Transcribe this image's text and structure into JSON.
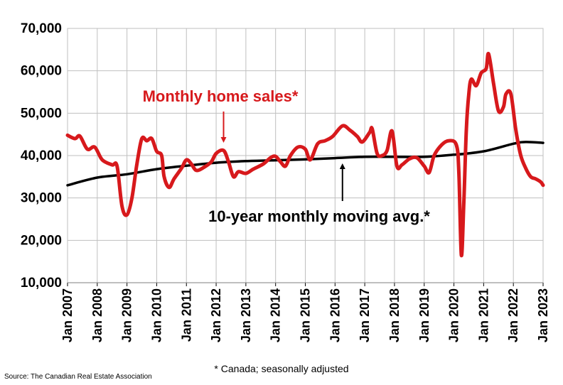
{
  "colors": {
    "sales": "#d7191c",
    "moving_avg": "#000000",
    "grid": "#bfbfbf"
  },
  "annotations": {
    "sales_label": "Monthly home sales*",
    "avg_label": "10-year monthly moving avg.*"
  },
  "footnote": "* Canada; seasonally adjusted",
  "source": "Source: The Canadian Real Estate Association",
  "chart_data": {
    "type": "line",
    "title": "",
    "xlabel": "",
    "ylabel": "",
    "ylim": [
      10000,
      70000
    ],
    "xlim": [
      "Jan 2007",
      "Jan 2023"
    ],
    "grid": true,
    "legend": "none",
    "y_ticks": [
      "10,000",
      "20,000",
      "30,000",
      "40,000",
      "50,000",
      "60,000",
      "70,000"
    ],
    "x_ticks": [
      "Jan 2007",
      "Jan 2008",
      "Jan 2009",
      "Jan 2010",
      "Jan 2011",
      "Jan 2012",
      "Jan 2013",
      "Jan 2014",
      "Jan 2015",
      "Jan 2016",
      "Jan 2017",
      "Jan 2018",
      "Jan 2019",
      "Jan 2020",
      "Jan 2021",
      "Jan 2022",
      "Jan 2023"
    ],
    "series": [
      {
        "name": "Monthly home sales*",
        "points": [
          [
            "Jan 2007",
            44800
          ],
          [
            "Apr 2007",
            44000
          ],
          [
            "Jun 2007",
            44600
          ],
          [
            "Sep 2007",
            41500
          ],
          [
            "Dec 2007",
            42000
          ],
          [
            "Mar 2008",
            39000
          ],
          [
            "Jul 2008",
            37800
          ],
          [
            "Sep 2008",
            37500
          ],
          [
            "Nov 2008",
            28000
          ],
          [
            "Jan 2009",
            26000
          ],
          [
            "Mar 2009",
            30000
          ],
          [
            "May 2009",
            38000
          ],
          [
            "Jul 2009",
            44000
          ],
          [
            "Sep 2009",
            43500
          ],
          [
            "Nov 2009",
            44000
          ],
          [
            "Jan 2010",
            41000
          ],
          [
            "Mar 2010",
            40000
          ],
          [
            "Apr 2010",
            35000
          ],
          [
            "Jun 2010",
            32500
          ],
          [
            "Aug 2010",
            34500
          ],
          [
            "Nov 2010",
            37000
          ],
          [
            "Jan 2011",
            39000
          ],
          [
            "Mar 2011",
            38000
          ],
          [
            "May 2011",
            36500
          ],
          [
            "Aug 2011",
            37200
          ],
          [
            "Nov 2011",
            38500
          ],
          [
            "Jan 2012",
            40500
          ],
          [
            "Apr 2012",
            41200
          ],
          [
            "Jun 2012",
            38500
          ],
          [
            "Aug 2012",
            35000
          ],
          [
            "Oct 2012",
            36200
          ],
          [
            "Jan 2013",
            35800
          ],
          [
            "Apr 2013",
            36800
          ],
          [
            "Aug 2013",
            38000
          ],
          [
            "Nov 2013",
            39500
          ],
          [
            "Jan 2014",
            39800
          ],
          [
            "Mar 2014",
            38500
          ],
          [
            "May 2014",
            37500
          ],
          [
            "Jul 2014",
            40000
          ],
          [
            "Oct 2014",
            42000
          ],
          [
            "Jan 2015",
            41500
          ],
          [
            "Mar 2015",
            39000
          ],
          [
            "Jun 2015",
            42800
          ],
          [
            "Sep 2015",
            43500
          ],
          [
            "Dec 2015",
            44500
          ],
          [
            "Apr 2016",
            47000
          ],
          [
            "Jul 2016",
            46000
          ],
          [
            "Oct 2016",
            44500
          ],
          [
            "Dec 2016",
            43200
          ],
          [
            "Mar 2017",
            45500
          ],
          [
            "Apr 2017",
            46300
          ],
          [
            "Jun 2017",
            40500
          ],
          [
            "Aug 2017",
            40000
          ],
          [
            "Oct 2017",
            41200
          ],
          [
            "Dec 2017",
            45800
          ],
          [
            "Feb 2018",
            37500
          ],
          [
            "Apr 2018",
            37800
          ],
          [
            "Jul 2018",
            39200
          ],
          [
            "Oct 2018",
            39500
          ],
          [
            "Jan 2019",
            37500
          ],
          [
            "Mar 2019",
            36000
          ],
          [
            "May 2019",
            40000
          ],
          [
            "Aug 2019",
            42500
          ],
          [
            "Nov 2019",
            43500
          ],
          [
            "Feb 2020",
            42500
          ],
          [
            "Mar 2020",
            36000
          ],
          [
            "Apr 2020",
            16500
          ],
          [
            "May 2020",
            29000
          ],
          [
            "Jun 2020",
            46000
          ],
          [
            "Jul 2020",
            54500
          ],
          [
            "Aug 2020",
            58000
          ],
          [
            "Oct 2020",
            56500
          ],
          [
            "Dec 2020",
            59500
          ],
          [
            "Feb 2021",
            60500
          ],
          [
            "Mar 2021",
            64000
          ],
          [
            "May 2021",
            57000
          ],
          [
            "Jul 2021",
            50500
          ],
          [
            "Sep 2021",
            51500
          ],
          [
            "Oct 2021",
            54500
          ],
          [
            "Dec 2021",
            54500
          ],
          [
            "Feb 2022",
            46000
          ],
          [
            "Apr 2022",
            40000
          ],
          [
            "Jun 2022",
            37000
          ],
          [
            "Aug 2022",
            35000
          ],
          [
            "Oct 2022",
            34500
          ],
          [
            "Dec 2022",
            33800
          ],
          [
            "Jan 2023",
            33000
          ]
        ]
      },
      {
        "name": "10-year monthly moving avg.*",
        "points": [
          [
            "Jan 2007",
            33000
          ],
          [
            "Jan 2008",
            34800
          ],
          [
            "Jan 2009",
            35600
          ],
          [
            "Jan 2010",
            36800
          ],
          [
            "Jan 2011",
            37600
          ],
          [
            "Jan 2012",
            38300
          ],
          [
            "Jan 2013",
            38700
          ],
          [
            "Jan 2014",
            38900
          ],
          [
            "Jan 2015",
            39100
          ],
          [
            "Jan 2016",
            39400
          ],
          [
            "Jan 2017",
            39700
          ],
          [
            "Jan 2018",
            39700
          ],
          [
            "Jan 2019",
            39700
          ],
          [
            "Jan 2020",
            40200
          ],
          [
            "Jan 2021",
            41000
          ],
          [
            "Jan 2022",
            42800
          ],
          [
            "Jun 2022",
            43200
          ],
          [
            "Jan 2023",
            43000
          ]
        ]
      }
    ]
  }
}
